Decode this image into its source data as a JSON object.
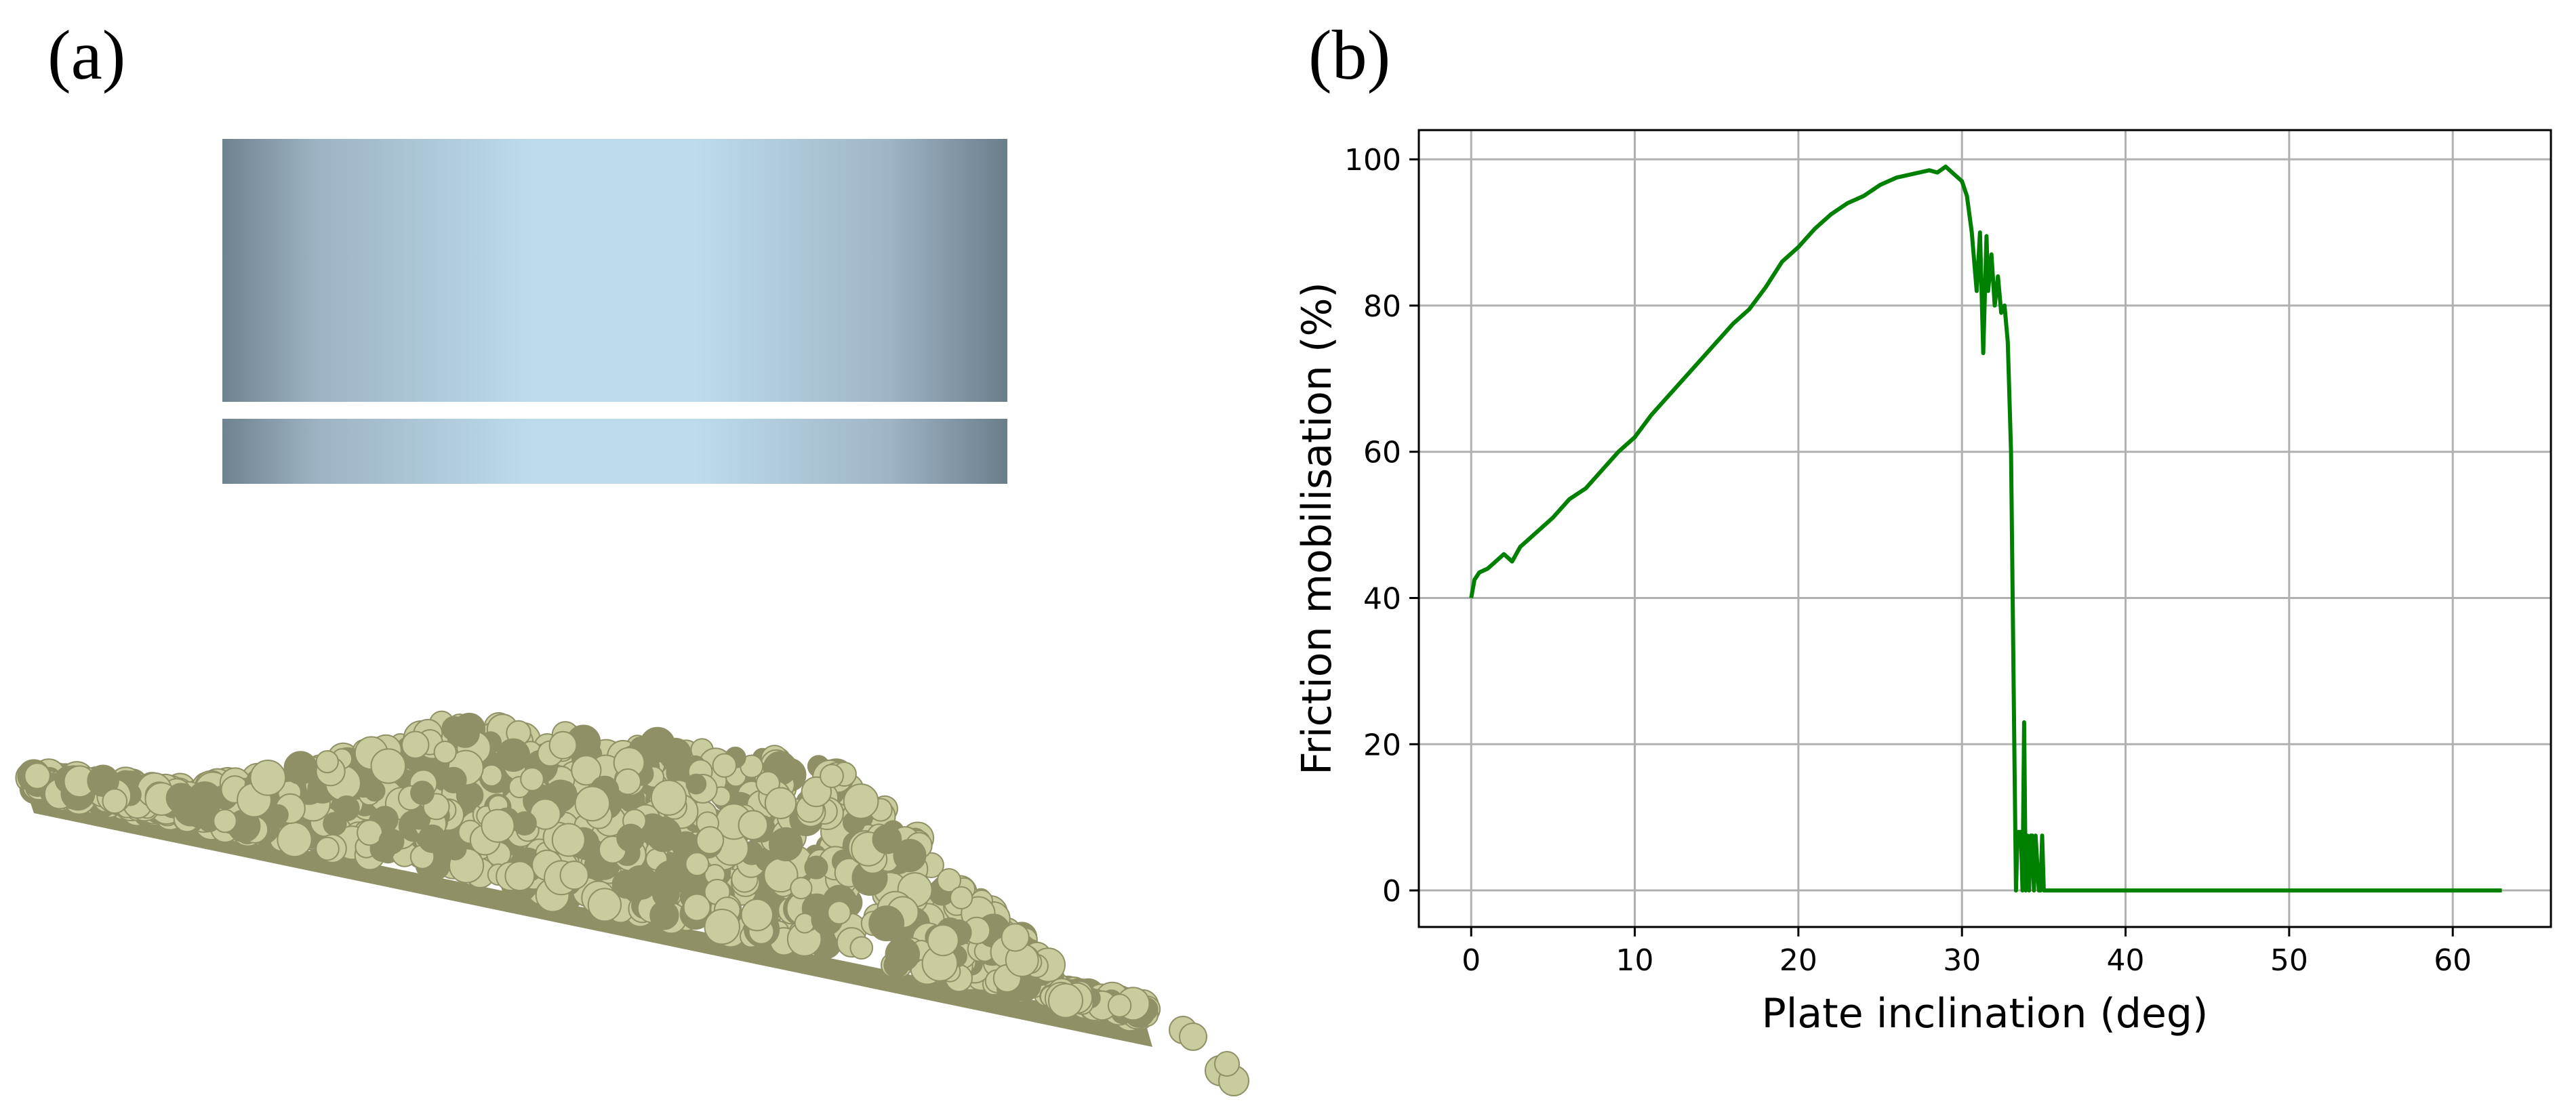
{
  "panel_labels": {
    "a": "(a)",
    "b": "(b)"
  },
  "colors": {
    "series": "#008000",
    "grid": "#b0b0b0",
    "cylinder_center": "#bcdcee",
    "cylinder_edge": "#6f8290",
    "particles": "#c9cc9c",
    "particles_dark": "#8f9066"
  },
  "chart_data": {
    "type": "line",
    "title": "",
    "xlabel": "Plate inclination (deg)",
    "ylabel": "Friction mobilisation (%)",
    "xlim": [
      -3.2,
      66
    ],
    "ylim": [
      -5,
      104
    ],
    "xticks": [
      0,
      10,
      20,
      30,
      40,
      50,
      60
    ],
    "yticks": [
      0,
      20,
      40,
      60,
      80,
      100
    ],
    "grid": true,
    "legend": "none",
    "series": [
      {
        "color": "#008000",
        "x": [
          0,
          0.2,
          0.5,
          1,
          1.5,
          2,
          2.5,
          3,
          3.5,
          4,
          5,
          6,
          7,
          8,
          9,
          10,
          11,
          12,
          13,
          14,
          15,
          16,
          17,
          18,
          19,
          20,
          21,
          22,
          23,
          24,
          25,
          26,
          27,
          28,
          28.5,
          29,
          29.5,
          30,
          30.3,
          30.6,
          30.9,
          31.1,
          31.3,
          31.5,
          31.6,
          31.8,
          32,
          32.2,
          32.4,
          32.6,
          32.8,
          33,
          33.1,
          33.2,
          33.3,
          33.4,
          33.6,
          33.7,
          33.8,
          33.9,
          34,
          34.1,
          34.2,
          34.3,
          34.4,
          34.5,
          34.7,
          34.8,
          34.9,
          35,
          35.1,
          40,
          50,
          60,
          63
        ],
        "y": [
          40,
          42.5,
          43.5,
          44,
          45,
          46,
          45,
          47,
          48,
          49,
          51,
          53.5,
          55,
          57.5,
          60,
          62,
          65,
          67.5,
          70,
          72.5,
          75,
          77.5,
          79.5,
          82.5,
          86,
          88,
          90.5,
          92.5,
          94,
          95,
          96.5,
          97.5,
          98,
          98.5,
          98.2,
          99,
          98,
          97,
          95,
          90,
          82,
          90,
          73.5,
          89.5,
          82,
          87,
          80,
          84,
          79,
          80,
          75,
          60,
          40,
          20,
          0,
          8,
          8,
          0,
          23,
          0,
          7.5,
          0,
          7.5,
          7.5,
          0,
          7.5,
          0,
          0,
          7.5,
          0,
          0,
          0,
          0,
          0,
          0
        ]
      }
    ]
  }
}
